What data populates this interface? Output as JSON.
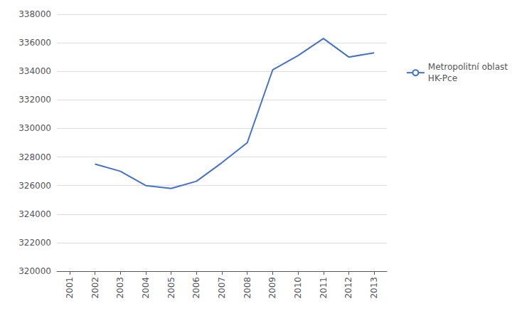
{
  "chart_data": {
    "type": "line",
    "x": [
      2002,
      2003,
      2004,
      2005,
      2006,
      2007,
      2008,
      2009,
      2010,
      2011,
      2012,
      2013
    ],
    "series": [
      {
        "name": "Metropolitní oblast\nHK-Pce",
        "color": "#4472C4",
        "values": [
          327500,
          327000,
          326000,
          325800,
          326300,
          327600,
          329000,
          334100,
          335100,
          336300,
          335000,
          335300
        ]
      }
    ],
    "xlim": [
      2000.5,
      2013.5
    ],
    "xticks": [
      2001,
      2002,
      2003,
      2004,
      2005,
      2006,
      2007,
      2008,
      2009,
      2010,
      2011,
      2012,
      2013
    ],
    "ylim": [
      320000,
      338000
    ],
    "yticks": [
      320000,
      322000,
      324000,
      326000,
      328000,
      330000,
      332000,
      334000,
      336000,
      338000
    ],
    "grid": true,
    "legend": "right"
  }
}
